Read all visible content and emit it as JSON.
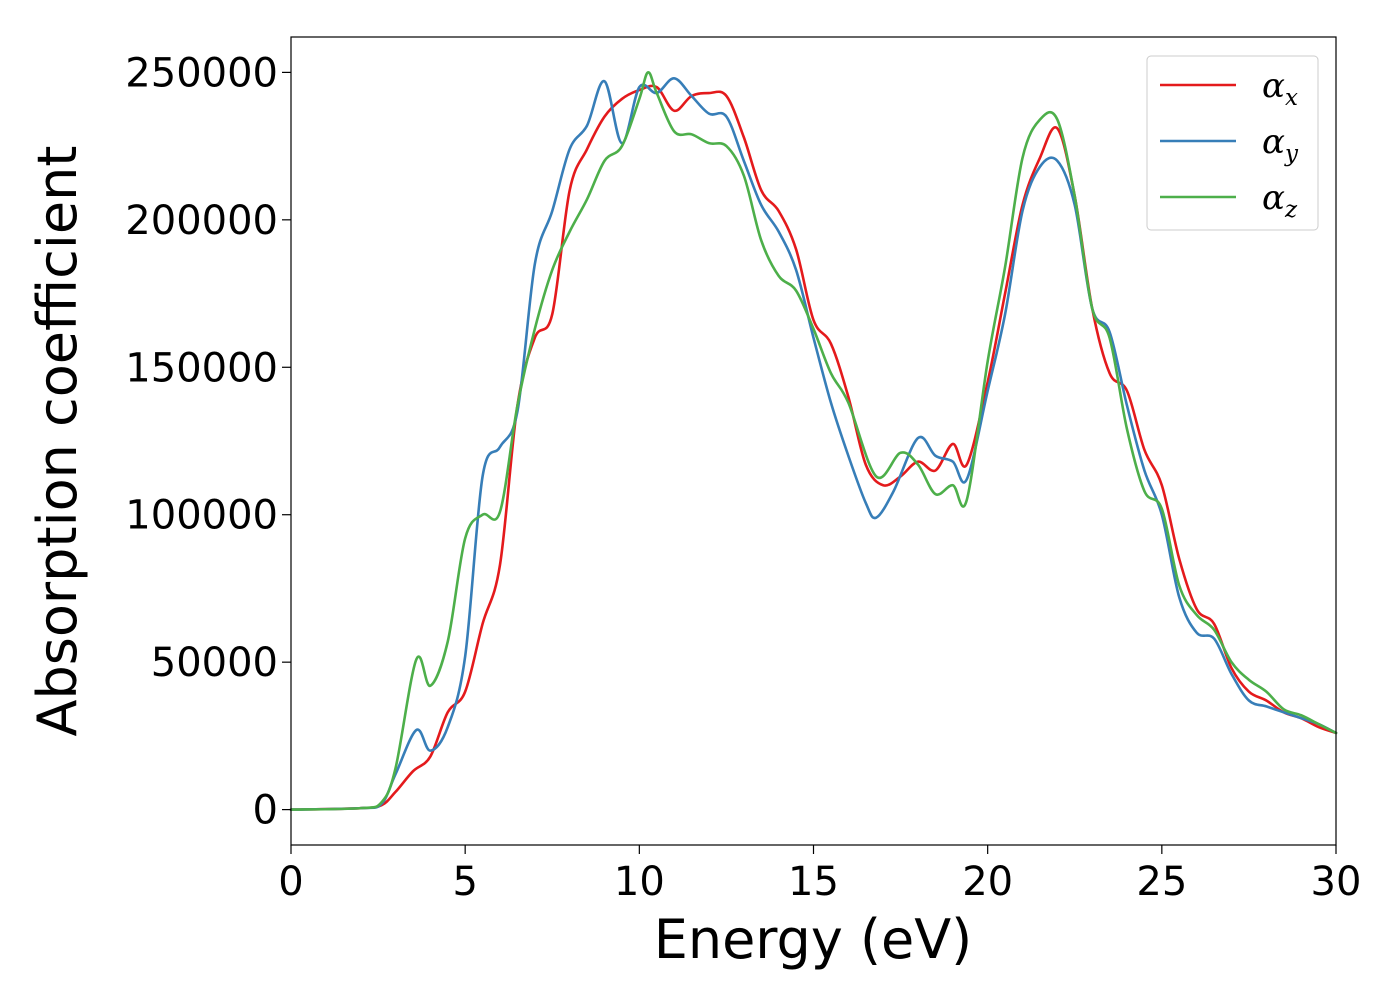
{
  "chart_data": {
    "type": "line",
    "xlabel": "Energy (eV)",
    "ylabel": "Absorption coefficient",
    "xlim": [
      0,
      30
    ],
    "ylim": [
      -12000,
      262000
    ],
    "xticks": [
      0,
      5,
      10,
      15,
      20,
      25,
      30
    ],
    "yticks": [
      0,
      50000,
      100000,
      150000,
      200000,
      250000
    ],
    "grid": false,
    "legend_position": "top-right",
    "series": [
      {
        "name": "α",
        "subscript": "x",
        "color": "#e41a1c",
        "x": [
          0,
          2,
          2.6,
          3,
          3.5,
          4,
          4.5,
          5,
          5.5,
          6,
          6.5,
          7,
          7.5,
          8,
          8.5,
          9,
          9.5,
          10,
          10.5,
          11,
          11.5,
          12,
          12.5,
          13,
          13.5,
          14,
          14.5,
          15,
          15.5,
          16,
          16.5,
          17,
          17.5,
          18,
          18.5,
          19,
          19.4,
          20,
          20.5,
          21,
          21.5,
          22,
          22.5,
          23,
          23.5,
          24,
          24.5,
          25,
          25.5,
          26,
          26.5,
          27,
          27.5,
          28,
          28.5,
          29,
          29.5,
          30
        ],
        "y": [
          0,
          500,
          1500,
          6000,
          13000,
          18000,
          33000,
          40000,
          63000,
          83000,
          137000,
          160000,
          168000,
          210000,
          224000,
          235000,
          241000,
          244000,
          245000,
          237000,
          242000,
          243000,
          242000,
          228000,
          210000,
          203000,
          190000,
          166000,
          158000,
          140000,
          117000,
          110000,
          113000,
          118000,
          115000,
          124000,
          117000,
          145000,
          175000,
          205000,
          221000,
          231000,
          208000,
          170000,
          148000,
          142000,
          122000,
          110000,
          85000,
          68000,
          63000,
          48000,
          40000,
          37000,
          33000,
          31000,
          28000,
          26000
        ]
      },
      {
        "name": "α",
        "subscript": "y",
        "color": "#377eb8",
        "x": [
          0,
          2,
          2.6,
          3,
          3.6,
          4,
          4.5,
          5,
          5.5,
          6,
          6.5,
          7,
          7.5,
          8,
          8.5,
          9,
          9.5,
          10,
          10.5,
          11,
          11.5,
          12,
          12.5,
          13,
          13.5,
          14,
          14.5,
          15,
          15.5,
          16,
          16.5,
          16.8,
          17.3,
          18,
          18.5,
          19,
          19.4,
          20,
          20.5,
          21,
          21.5,
          22,
          22.5,
          23,
          23.5,
          24,
          24.5,
          25,
          25.5,
          26,
          26.5,
          27,
          27.5,
          28,
          28.5,
          29,
          29.5,
          30
        ],
        "y": [
          0,
          500,
          2000,
          12000,
          27000,
          20000,
          28000,
          52000,
          113000,
          123000,
          135000,
          185000,
          203000,
          224000,
          232000,
          247000,
          226000,
          245000,
          243000,
          248000,
          242000,
          236000,
          235000,
          220000,
          205000,
          196000,
          183000,
          160000,
          138000,
          120000,
          104000,
          99000,
          108000,
          126000,
          120000,
          118000,
          112000,
          142000,
          168000,
          203000,
          218000,
          220000,
          205000,
          170000,
          162000,
          137000,
          115000,
          100000,
          72000,
          60000,
          58000,
          46000,
          37000,
          35000,
          33000,
          31000,
          29000,
          26000
        ]
      },
      {
        "name": "α",
        "subscript": "z",
        "color": "#4daf4a",
        "x": [
          0,
          2,
          2.6,
          3,
          3.6,
          4,
          4.5,
          5,
          5.5,
          6,
          6.5,
          7,
          7.5,
          8,
          8.5,
          9,
          9.5,
          10,
          10.25,
          10.5,
          11,
          11.5,
          12,
          12.5,
          13,
          13.5,
          14,
          14.5,
          15,
          15.5,
          16,
          16.8,
          17.5,
          18,
          18.5,
          19,
          19.4,
          20,
          20.5,
          21,
          21.5,
          22,
          22.5,
          23,
          23.5,
          24,
          24.5,
          25,
          25.5,
          26,
          26.5,
          27,
          27.5,
          28,
          28.5,
          29,
          29.5,
          30
        ],
        "y": [
          0,
          500,
          2500,
          14000,
          51000,
          42000,
          57000,
          92000,
          100000,
          101000,
          137000,
          163000,
          183000,
          196000,
          207000,
          220000,
          225000,
          241000,
          250000,
          243000,
          230000,
          229000,
          226000,
          225000,
          215000,
          193000,
          181000,
          176000,
          163000,
          148000,
          138000,
          113000,
          121000,
          117000,
          107000,
          110000,
          105000,
          152000,
          184000,
          221000,
          234000,
          234000,
          208000,
          170000,
          160000,
          129000,
          108000,
          102000,
          76000,
          66000,
          61000,
          50000,
          44000,
          40000,
          34000,
          32000,
          29000,
          26000
        ]
      }
    ]
  }
}
